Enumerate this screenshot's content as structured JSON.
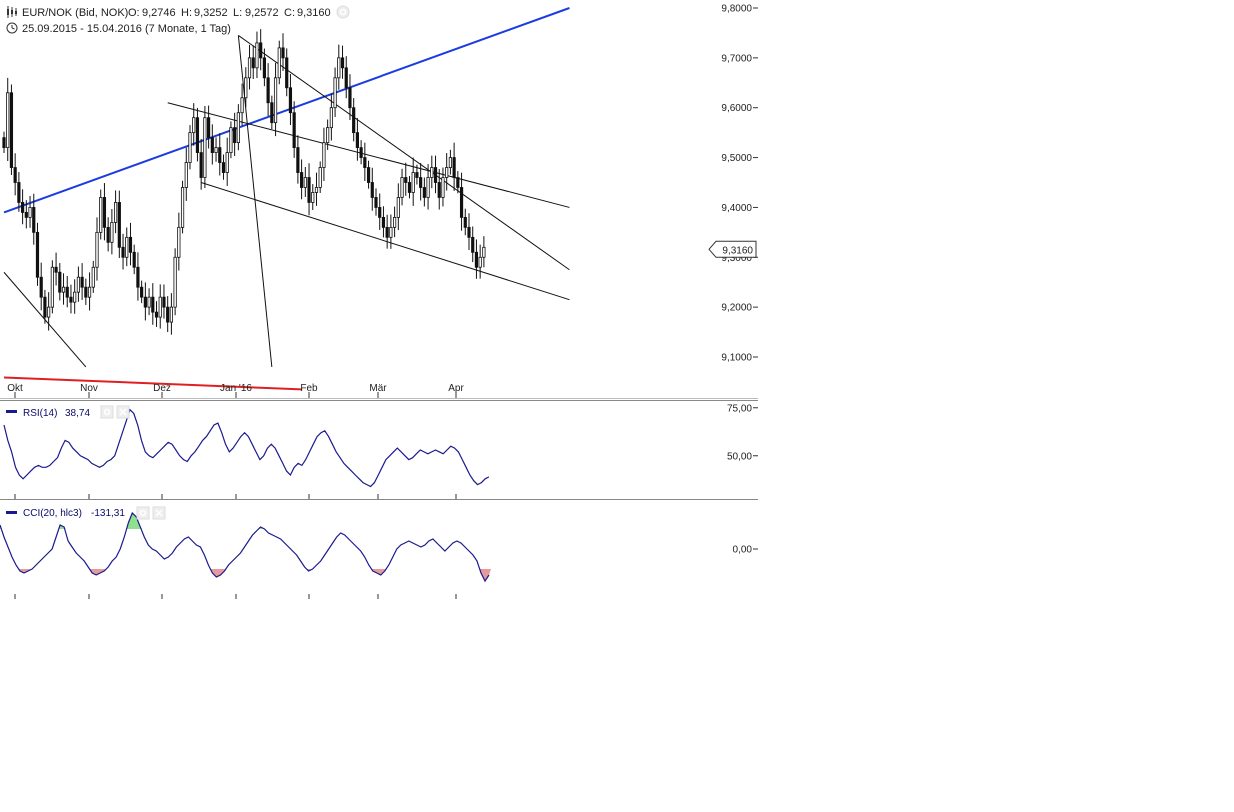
{
  "header": {
    "instrument": "EUR/NOK (Bid, NOK)",
    "ohlc": {
      "open_label": "O:",
      "open": "9,2746",
      "high_label": "H:",
      "high": "9,3252",
      "low_label": "L:",
      "low": "9,2572",
      "close_label": "C:",
      "close": "9,3160"
    },
    "period": "25.09.2015 - 15.04.2016 (7 Monate, 1 Tag)",
    "chart_icon": "candlestick-icon",
    "clock_icon": "clock-icon",
    "settings_icon": "gear-icon"
  },
  "colors": {
    "candle": "#111111",
    "trend_blue": "#1a3ce0",
    "trend_red": "#e02020",
    "indicator_line": "#1a1a90",
    "cci_pos_fill": "#8fe08f",
    "cci_neg_fill": "#e69a9a",
    "axis": "#333333"
  },
  "chart_data": [
    {
      "type": "candlestick",
      "title": "EUR/NOK (Bid, NOK)",
      "x_ticks": [
        "Okt",
        "Nov",
        "Dez",
        "Jan '16",
        "Feb",
        "Mär",
        "Apr"
      ],
      "y_ticks": [
        "9,8000",
        "9,7000",
        "9,6000",
        "9,5000",
        "9,4000",
        "9,3000",
        "9,2000",
        "9,1000"
      ],
      "ylim": [
        9.08,
        9.8
      ],
      "last_price_label": "9,3160",
      "closes": [
        9.52,
        9.63,
        9.48,
        9.45,
        9.41,
        9.39,
        9.38,
        9.4,
        9.35,
        9.26,
        9.22,
        9.18,
        9.2,
        9.28,
        9.27,
        9.23,
        9.24,
        9.22,
        9.21,
        9.23,
        9.26,
        9.24,
        9.22,
        9.24,
        9.28,
        9.35,
        9.42,
        9.36,
        9.33,
        9.37,
        9.41,
        9.32,
        9.3,
        9.34,
        9.31,
        9.28,
        9.24,
        9.22,
        9.2,
        9.22,
        9.19,
        9.18,
        9.22,
        9.2,
        9.17,
        9.2,
        9.3,
        9.36,
        9.44,
        9.49,
        9.55,
        9.58,
        9.51,
        9.46,
        9.58,
        9.54,
        9.51,
        9.52,
        9.49,
        9.47,
        9.51,
        9.56,
        9.53,
        9.59,
        9.62,
        9.66,
        9.7,
        9.68,
        9.73,
        9.7,
        9.66,
        9.61,
        9.57,
        9.66,
        9.72,
        9.7,
        9.64,
        9.59,
        9.52,
        9.47,
        9.44,
        9.46,
        9.41,
        9.43,
        9.44,
        9.48,
        9.53,
        9.56,
        9.6,
        9.66,
        9.7,
        9.68,
        9.64,
        9.6,
        9.55,
        9.52,
        9.5,
        9.48,
        9.45,
        9.42,
        9.4,
        9.38,
        9.36,
        9.34,
        9.36,
        9.38,
        9.42,
        9.46,
        9.45,
        9.43,
        9.47,
        9.46,
        9.44,
        9.42,
        9.46,
        9.48,
        9.45,
        9.42,
        9.46,
        9.48,
        9.5,
        9.46,
        9.44,
        9.38,
        9.36,
        9.34,
        9.31,
        9.28,
        9.3,
        9.32
      ],
      "trendlines": [
        {
          "color": "trend_blue",
          "from": {
            "bar": 0,
            "price": 9.39
          },
          "to": {
            "bar": 152,
            "price": 9.8
          }
        },
        {
          "color": "trend_red",
          "from": {
            "bar": 0,
            "price": 9.059
          },
          "to": {
            "bar": 80,
            "price": 9.035
          }
        },
        {
          "color": "black",
          "from": {
            "bar": 63,
            "price": 9.745
          },
          "to": {
            "bar": 152,
            "price": 9.275
          }
        },
        {
          "color": "black",
          "from": {
            "bar": 44,
            "price": 9.61
          },
          "to": {
            "bar": 152,
            "price": 9.4
          }
        },
        {
          "color": "black",
          "from": {
            "bar": 53,
            "price": 9.45
          },
          "to": {
            "bar": 152,
            "price": 9.215
          }
        },
        {
          "color": "black",
          "from": {
            "bar": 63,
            "price": 9.745
          },
          "to": {
            "bar": 72,
            "price": 9.08
          }
        },
        {
          "color": "black",
          "from": {
            "bar": 0,
            "price": 9.27
          },
          "to": {
            "bar": 22,
            "price": 9.08
          }
        }
      ]
    },
    {
      "type": "line",
      "name": "RSI(14)",
      "current_value": "38,74",
      "y_ticks": [
        "75,00",
        "50,00"
      ],
      "ylim": [
        28,
        78
      ],
      "values": [
        66,
        58,
        52,
        44,
        40,
        38,
        40,
        42,
        44,
        45,
        44,
        44,
        45,
        47,
        49,
        54,
        58,
        57,
        54,
        52,
        50,
        49,
        48,
        46,
        45,
        44,
        45,
        47,
        48,
        50,
        56,
        62,
        68,
        74,
        72,
        66,
        58,
        52,
        50,
        49,
        51,
        53,
        55,
        57,
        56,
        53,
        50,
        48,
        47,
        50,
        52,
        55,
        58,
        60,
        63,
        66,
        67,
        62,
        56,
        52,
        54,
        57,
        60,
        62,
        60,
        56,
        52,
        48,
        50,
        54,
        56,
        54,
        50,
        46,
        42,
        40,
        44,
        46,
        45,
        48,
        52,
        56,
        60,
        62,
        63,
        60,
        56,
        52,
        49,
        46,
        44,
        42,
        40,
        38,
        36,
        35,
        34,
        36,
        40,
        44,
        48,
        50,
        52,
        54,
        52,
        50,
        48,
        49,
        51,
        53,
        52,
        51,
        52,
        53,
        52,
        51,
        53,
        55,
        54,
        52,
        48,
        44,
        40,
        37,
        35,
        36,
        38,
        39
      ]
    },
    {
      "type": "area",
      "name": "CCI(20, hlc3)",
      "current_value": "-131,31",
      "y_ticks": [
        "0,00"
      ],
      "ylim": [
        -240,
        220
      ],
      "values": [
        120,
        60,
        10,
        -40,
        -80,
        -110,
        -120,
        -110,
        -100,
        -80,
        -60,
        -40,
        -20,
        0,
        60,
        120,
        110,
        40,
        10,
        -20,
        -40,
        -60,
        -90,
        -120,
        -130,
        -120,
        -110,
        -90,
        -60,
        -40,
        0,
        60,
        130,
        180,
        160,
        110,
        60,
        20,
        0,
        -10,
        -30,
        -50,
        -40,
        -20,
        10,
        30,
        50,
        60,
        40,
        20,
        10,
        -30,
        -80,
        -120,
        -140,
        -130,
        -110,
        -80,
        -60,
        -40,
        -20,
        10,
        40,
        70,
        90,
        110,
        100,
        80,
        70,
        60,
        50,
        30,
        10,
        -10,
        -30,
        -60,
        -90,
        -110,
        -100,
        -80,
        -60,
        -30,
        0,
        30,
        60,
        80,
        70,
        50,
        30,
        10,
        -10,
        -40,
        -80,
        -110,
        -120,
        -130,
        -110,
        -80,
        -40,
        0,
        20,
        30,
        40,
        30,
        20,
        10,
        20,
        40,
        50,
        30,
        10,
        -10,
        10,
        30,
        40,
        30,
        10,
        -10,
        -30,
        -60,
        -120,
        -160,
        -130
      ]
    }
  ]
}
